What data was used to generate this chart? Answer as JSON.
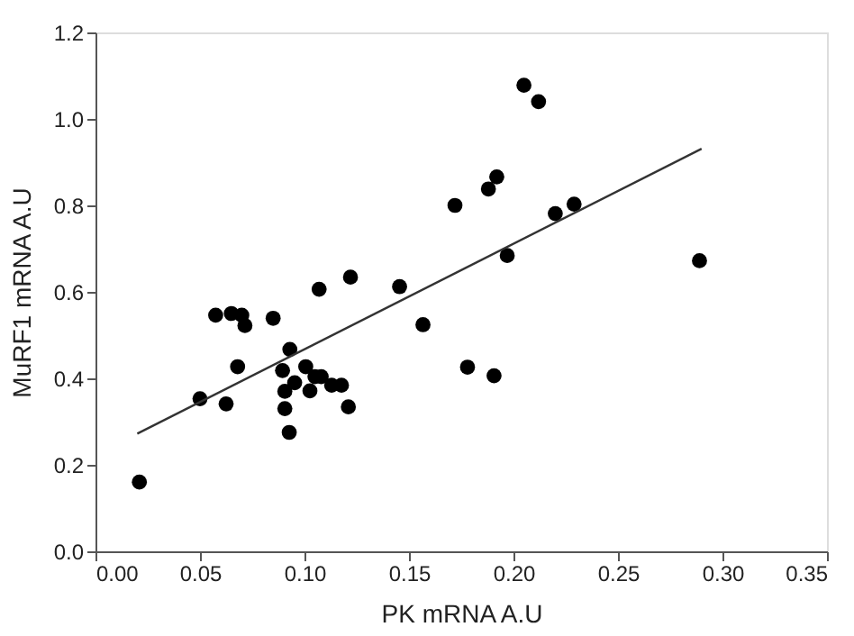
{
  "chart_data": {
    "type": "scatter",
    "xlabel": "PK mRNA A.U",
    "ylabel": "MuRF1 mRNA A.U",
    "xlim": [
      0,
      0.35
    ],
    "xticks": [
      {
        "value": 0,
        "label": "0.00"
      },
      {
        "value": 0.05,
        "label": "0.05"
      },
      {
        "value": 0.1,
        "label": "0.10"
      },
      {
        "value": 0.15,
        "label": "0.15"
      },
      {
        "value": 0.2,
        "label": "0.20"
      },
      {
        "value": 0.25,
        "label": "0.25"
      },
      {
        "value": 0.3,
        "label": "0.30"
      },
      {
        "value": 0.35,
        "label": "0.35"
      }
    ],
    "ylim": [
      0,
      1.2
    ],
    "yticks": [
      {
        "value": 0,
        "label": "0.0"
      },
      {
        "value": 0.2,
        "label": "0.2"
      },
      {
        "value": 0.4,
        "label": "0.4"
      },
      {
        "value": 0.6,
        "label": "0.6"
      },
      {
        "value": 0.8,
        "label": "0.8"
      },
      {
        "value": 1.0,
        "label": "1.0"
      },
      {
        "value": 1.2,
        "label": "1.2"
      }
    ],
    "grid": false,
    "series": [
      {
        "marker": "circle",
        "color": "#000000",
        "x": [
          0.021,
          0.05,
          0.0575,
          0.065,
          0.07,
          0.0715,
          0.085,
          0.068,
          0.0625,
          0.107,
          0.122,
          0.1455,
          0.1567,
          0.093,
          0.0895,
          0.0906,
          0.0906,
          0.0927,
          0.0953,
          0.1006,
          0.1026,
          0.105,
          0.108,
          0.113,
          0.1177,
          0.121,
          0.178,
          0.1907,
          0.172,
          0.188,
          0.192,
          0.205,
          0.212,
          0.22,
          0.229,
          0.197,
          0.289
        ],
        "values": [
          0.16,
          0.353,
          0.546,
          0.55,
          0.546,
          0.522,
          0.539,
          0.427,
          0.341,
          0.606,
          0.634,
          0.612,
          0.524,
          0.467,
          0.418,
          0.37,
          0.33,
          0.275,
          0.39,
          0.427,
          0.371,
          0.404,
          0.404,
          0.384,
          0.384,
          0.334,
          0.426,
          0.406,
          0.8,
          0.838,
          0.866,
          1.078,
          1.04,
          0.781,
          0.803,
          0.684,
          0.672
        ]
      },
      {
        "type": "line",
        "marker": "none",
        "line_style": "solid",
        "color": "#333333",
        "x": [
          0.02,
          0.29
        ],
        "values": [
          0.272,
          0.931
        ]
      }
    ]
  }
}
